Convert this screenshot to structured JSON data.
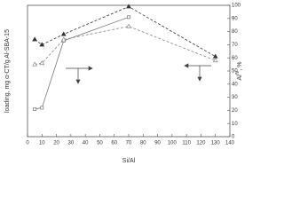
{
  "chart_data": {
    "type": "line",
    "xlabel": "Si/Al",
    "ylabel": "loading, mg α-CT/g Al-SBA-15",
    "y2label": [
      "Al",
      "IV",
      ", %"
    ],
    "xlim": [
      0,
      140
    ],
    "xticks": [
      0,
      10,
      20,
      30,
      40,
      50,
      60,
      70,
      80,
      90,
      100,
      110,
      120,
      130,
      140
    ],
    "ylim": [
      0,
      100
    ],
    "y2lim": [
      0,
      100
    ],
    "y2ticks": [
      0,
      10,
      20,
      30,
      40,
      50,
      60,
      70,
      80,
      90,
      100
    ],
    "series": [
      {
        "color": "#777777",
        "dash": false,
        "marker": "square-open",
        "x": [
          5,
          10,
          25,
          70
        ],
        "values": [
          21,
          22,
          73,
          91
        ]
      },
      {
        "color": "#333333",
        "dash": true,
        "marker": "triangle-filled",
        "axis": "y2",
        "x": [
          5,
          10,
          25,
          70,
          130
        ],
        "values": [
          74,
          70,
          78,
          99,
          61
        ]
      },
      {
        "color": "#888888",
        "dash": true,
        "marker": "triangle-open",
        "axis": "y2",
        "x": [
          5,
          10,
          25,
          70,
          130
        ],
        "values": [
          55,
          56,
          74,
          84,
          58
        ]
      }
    ]
  }
}
